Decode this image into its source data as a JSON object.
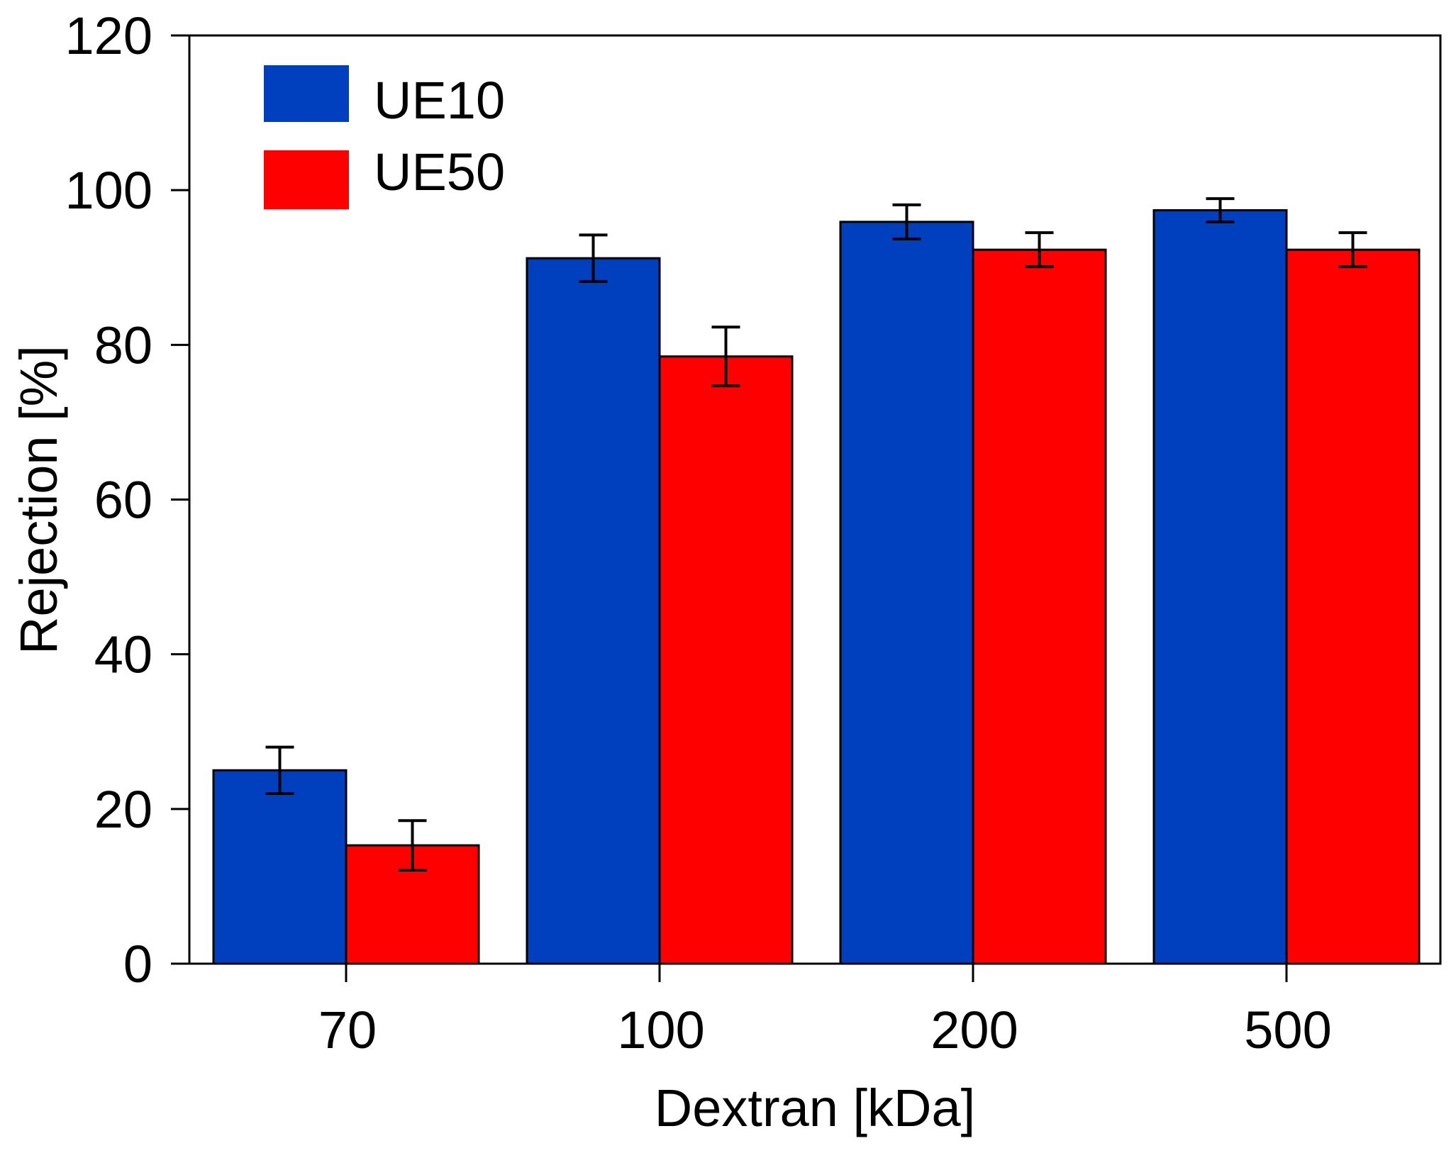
{
  "chart_data": {
    "type": "bar",
    "title": "",
    "xlabel": "Dextran [kDa]",
    "ylabel": "Rejection [%]",
    "categories": [
      "70",
      "100",
      "200",
      "500"
    ],
    "ylim": [
      0,
      120
    ],
    "yticks": [
      "0",
      "20",
      "40",
      "60",
      "80",
      "100",
      "120"
    ],
    "grid": false,
    "legend_position": "top-left",
    "series": [
      {
        "name": "UE10",
        "color": "#0040bf",
        "values": [
          25.0,
          91.2,
          95.9,
          97.4
        ],
        "errors": [
          3.0,
          3.0,
          2.2,
          1.5
        ]
      },
      {
        "name": "UE50",
        "color": "#ff0000",
        "values": [
          15.3,
          78.5,
          92.3,
          92.3
        ],
        "errors": [
          3.2,
          3.8,
          2.2,
          2.2
        ]
      }
    ]
  }
}
